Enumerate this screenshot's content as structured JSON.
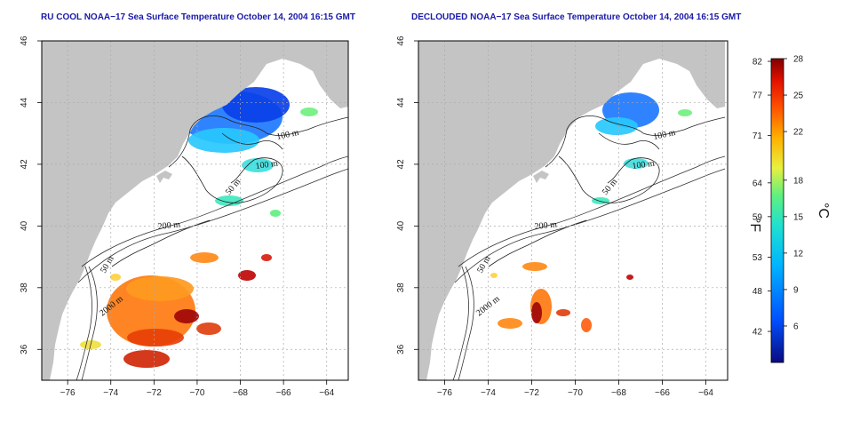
{
  "panels": [
    {
      "title": "RU COOL NOAA−17 Sea Surface Temperature October 14, 2004 16:15 GMT",
      "variant": "full"
    },
    {
      "title": "DECLOUDED NOAA−17 Sea Surface Temperature October 14, 2004 16:15 GMT",
      "variant": "declouded"
    }
  ],
  "axes": {
    "x_ticks": [
      "−76",
      "−74",
      "−72",
      "−70",
      "−68",
      "−66",
      "−64"
    ],
    "x_values": [
      -76,
      -74,
      -72,
      -70,
      -68,
      -66,
      -64
    ],
    "y_ticks": [
      "36",
      "38",
      "40",
      "42",
      "44",
      "46"
    ],
    "y_values": [
      36,
      38,
      40,
      42,
      44,
      46
    ],
    "lon_range": [
      -77.2,
      -63.0
    ],
    "lat_range": [
      35.0,
      46.0
    ],
    "grid": true
  },
  "contour_labels": [
    "100 m",
    "100 m",
    "50 m",
    "200 m",
    "50 m",
    "2000 m"
  ],
  "colorbar": {
    "fahrenheit_ticks": [
      "82",
      "77",
      "71",
      "64",
      "59",
      "53",
      "48",
      "42"
    ],
    "celsius_ticks": [
      "28",
      "25",
      "22",
      "18",
      "15",
      "12",
      "9",
      "6"
    ],
    "fahrenheit_label": "°F",
    "celsius_label": "°C",
    "range_c": [
      3,
      28
    ],
    "colors": [
      "#0a0a80",
      "#0050ff",
      "#00b4ff",
      "#20e0d0",
      "#60f080",
      "#e8f040",
      "#ffb000",
      "#ff5000",
      "#e01000",
      "#800000"
    ]
  },
  "colors": {
    "land": "#c4c4c4",
    "title": "#1a1aa8",
    "grid": "#aaaaaa"
  }
}
